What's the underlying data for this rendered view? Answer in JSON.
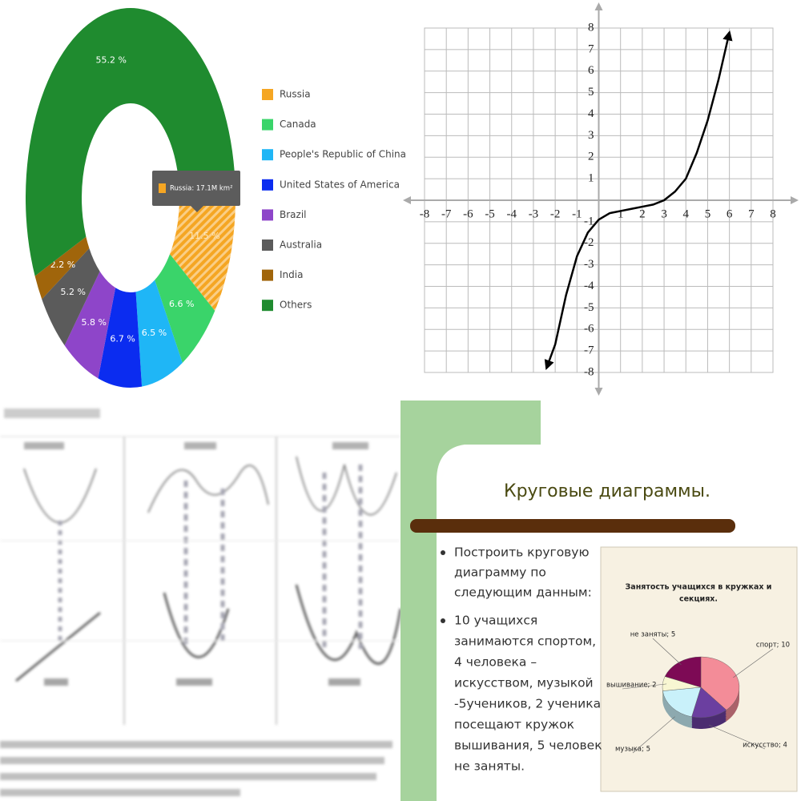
{
  "chart_data": [
    {
      "type": "donut",
      "categories": [
        "Russia",
        "Canada",
        "People's Republic of China",
        "United States of America",
        "Brazil",
        "Australia",
        "India",
        "Others"
      ],
      "values": [
        11.5,
        6.6,
        6.5,
        6.7,
        5.8,
        5.2,
        2.2,
        55.2
      ],
      "value_labels": [
        "11.5 %",
        "6.6 %",
        "6.5 %",
        "6.7 %",
        "5.8 %",
        "5.2 %",
        "2.2 %",
        "55.2 %"
      ],
      "colors": [
        "#f5a623",
        "#3ad46a",
        "#1fb6f6",
        "#0b2cf0",
        "#8e45c9",
        "#5b5b5b",
        "#a0650b",
        "#1f8b2f"
      ],
      "annotation": "Russia: 17.1M km²"
    },
    {
      "type": "line",
      "x": [
        -2.4,
        -2,
        -1.5,
        -1,
        -0.5,
        0,
        0.5,
        1,
        1.5,
        2,
        2.5,
        3,
        3.5,
        4,
        4.5,
        5,
        5.5,
        6
      ],
      "series": [
        {
          "color": "#000000",
          "values": [
            -7.8,
            -6.7,
            -4.4,
            -2.6,
            -1.5,
            -0.9,
            -0.6,
            -0.5,
            -0.4,
            -0.3,
            -0.2,
            0,
            0.4,
            1,
            2.2,
            3.7,
            5.6,
            7.8
          ]
        }
      ],
      "xlim": [
        -8,
        8
      ],
      "ylim": [
        -8,
        8
      ],
      "xticks": [
        -8,
        -7,
        -6,
        -5,
        -4,
        -3,
        -2,
        -1,
        1,
        2,
        3,
        4,
        5,
        6,
        7,
        8
      ],
      "yticks": [
        -8,
        -7,
        -6,
        -5,
        -4,
        -3,
        -2,
        -1,
        1,
        2,
        3,
        4,
        5,
        6,
        7,
        8
      ],
      "grid": true
    },
    {
      "type": "pie3d",
      "title": [
        "Занятость учащихся в кружках и",
        "секциях."
      ],
      "values": [
        10,
        4,
        5,
        2,
        5
      ],
      "value_labels": [
        "спорт; 10",
        "искусство; 4",
        "музыка; 5",
        "вышивание; 2",
        "не заняты; 5"
      ],
      "colors": [
        "#f38c98",
        "#6b3fa0",
        "#c9f1fa",
        "#f8f6d2",
        "#7d0a55"
      ]
    }
  ],
  "slide": {
    "title": "Круговые диаграммы.",
    "bullets": [
      [
        "Построить круговую",
        "диаграмму по",
        "следующим данным:"
      ],
      [
        "10 учащихся",
        "занимаются спортом,",
        "4 человека –",
        "искусством, музыкой",
        "-5учеников, 2 ученика",
        "посещают кружок",
        "вышивания, 5 человек",
        "не заняты."
      ]
    ]
  }
}
